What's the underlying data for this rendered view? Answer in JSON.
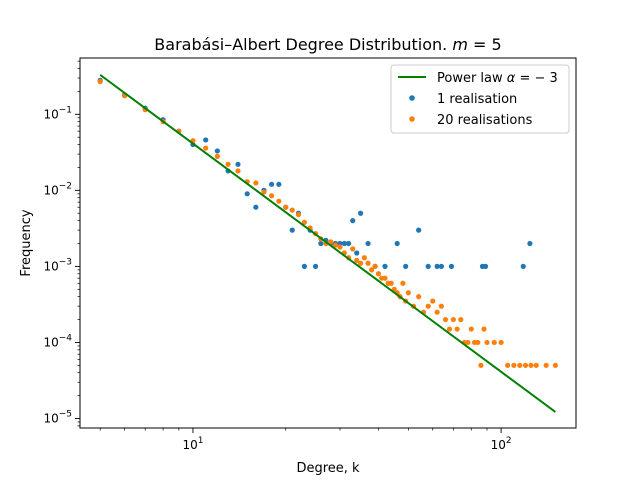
{
  "chart_data": {
    "type": "scatter",
    "title": "Barabási–Albert Degree Distribution. m = 5",
    "title_parts": {
      "prefix": "Barabási–Albert Degree Distribution. ",
      "var": "m",
      "suffix": " = 5"
    },
    "xlabel": "Degree, k",
    "ylabel": "Frequency",
    "xscale": "log",
    "yscale": "log",
    "xlim": [
      4.3,
      175
    ],
    "ylim": [
      7.5e-06,
      0.55
    ],
    "grid": false,
    "legend_position": "top-right",
    "x_ticks": [
      {
        "value": 10,
        "base": "10",
        "exp": "1"
      },
      {
        "value": 100,
        "base": "10",
        "exp": "2"
      }
    ],
    "y_ticks": [
      {
        "value": 0.1,
        "base": "10",
        "exp": "−1"
      },
      {
        "value": 0.01,
        "base": "10",
        "exp": "−2"
      },
      {
        "value": 0.001,
        "base": "10",
        "exp": "−3"
      },
      {
        "value": 0.0001,
        "base": "10",
        "exp": "−4"
      },
      {
        "value": 1e-05,
        "base": "10",
        "exp": "−5"
      }
    ],
    "fit_line": {
      "name": "Power law α = − 3",
      "name_parts": {
        "prefix": "Power law ",
        "var": "α",
        "suffix": " = − 3"
      },
      "color": "#008000",
      "x": [
        5,
        150
      ],
      "y": [
        0.33,
        1.22e-05
      ]
    },
    "series": [
      {
        "name": "1 realisation",
        "color": "#1f77b4",
        "x": [
          5,
          6,
          7,
          8,
          9,
          10,
          11,
          12,
          13,
          14,
          15,
          16,
          17,
          18,
          19,
          20,
          21,
          22,
          23,
          24,
          25,
          26,
          27,
          28,
          29,
          30,
          31,
          32,
          33,
          34,
          35,
          37,
          39,
          42,
          46,
          49,
          54,
          58,
          62,
          64,
          69,
          87,
          89,
          118,
          124
        ],
        "y": [
          0.28,
          0.18,
          0.12,
          0.085,
          0.06,
          0.04,
          0.046,
          0.033,
          0.018,
          0.022,
          0.009,
          0.006,
          0.01,
          0.012,
          0.012,
          0.006,
          0.003,
          0.005,
          0.001,
          0.003,
          0.001,
          0.002,
          0.0022,
          0.002,
          0.002,
          0.002,
          0.002,
          0.002,
          0.004,
          0.0015,
          0.005,
          0.002,
          0.001,
          0.001,
          0.002,
          0.001,
          0.003,
          0.001,
          0.001,
          0.001,
          0.001,
          0.001,
          0.001,
          0.001,
          0.002
        ]
      },
      {
        "name": "20 realisations",
        "color": "#ff7f0e",
        "x": [
          5,
          6,
          7,
          8,
          9,
          10,
          11,
          12,
          13,
          14,
          15,
          16,
          17,
          18,
          19,
          20,
          21,
          22,
          23,
          24,
          25,
          26,
          27,
          28,
          29,
          30,
          31,
          32,
          33,
          34,
          35,
          36,
          37,
          38,
          39,
          40,
          41,
          42,
          43,
          44,
          45,
          46,
          47,
          48,
          49,
          50,
          52,
          54,
          56,
          58,
          60,
          62,
          64,
          66,
          68,
          70,
          72,
          74,
          76,
          78,
          80,
          82,
          84,
          86,
          88,
          90,
          95,
          100,
          105,
          110,
          115,
          120,
          125,
          130,
          140,
          150
        ],
        "y": [
          0.27,
          0.175,
          0.115,
          0.08,
          0.06,
          0.045,
          0.036,
          0.028,
          0.022,
          0.018,
          0.013,
          0.0125,
          0.0095,
          0.0085,
          0.0072,
          0.006,
          0.0055,
          0.0048,
          0.0038,
          0.0032,
          0.0027,
          0.0023,
          0.002,
          0.0021,
          0.0019,
          0.0018,
          0.0015,
          0.0013,
          0.0017,
          0.0012,
          0.0011,
          0.0013,
          0.0011,
          0.0009,
          0.001,
          0.0008,
          0.0007,
          0.0007,
          0.0006,
          0.0006,
          0.0005,
          0.00045,
          0.0004,
          0.0006,
          0.00035,
          0.00045,
          0.0003,
          0.0004,
          0.00025,
          0.0003,
          0.00035,
          0.00025,
          0.0003,
          0.0002,
          0.00015,
          0.0002,
          0.00015,
          0.0002,
          0.0001,
          0.0001,
          0.00015,
          0.0001,
          0.0001,
          5e-05,
          0.00015,
          0.0001,
          0.0001,
          0.0001,
          5e-05,
          5e-05,
          5e-05,
          5e-05,
          5e-05,
          5e-05,
          5e-05,
          5e-05
        ]
      }
    ]
  }
}
